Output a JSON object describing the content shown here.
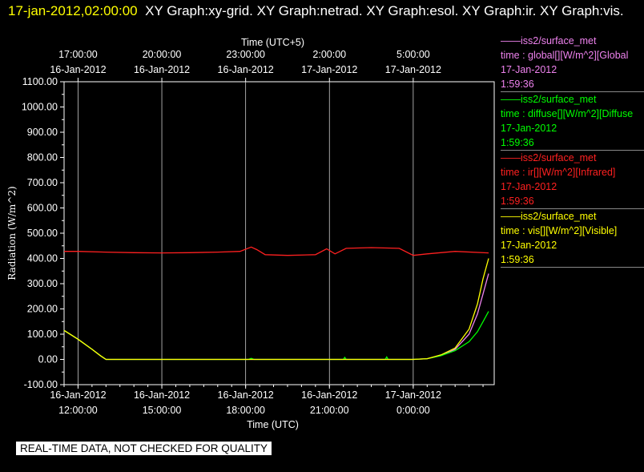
{
  "header": {
    "timestamp": "17-jan-2012,02:00:00",
    "graphs": "XY Graph:xy-grid.  XY Graph:netrad.  XY Graph:esol.  XY Graph:ir.  XY Graph:vis."
  },
  "legend": [
    {
      "source": "iss2/surface_met",
      "field": "time : global[][W/m^2][Global",
      "date": "17-Jan-2012",
      "time": "1:59:36",
      "color": "#ee82ee"
    },
    {
      "source": "iss2/surface_met",
      "field": "time : diffuse[][W/m^2][Diffuse",
      "date": "17-Jan-2012",
      "time": "1:59:36",
      "color": "#00ff00"
    },
    {
      "source": "iss2/surface_met",
      "field": "time : ir[][W/m^2][Infrared]",
      "date": "17-Jan-2012",
      "time": "1:59:36",
      "color": "#ff2020"
    },
    {
      "source": "iss2/surface_met",
      "field": "time : vis[][W/m^2][Visible]",
      "date": "17-Jan-2012",
      "time": "1:59:36",
      "color": "#ffff00"
    }
  ],
  "quality_note": "REAL-TIME DATA, NOT CHECKED FOR QUALITY",
  "chart_data": {
    "type": "line",
    "title": "",
    "xlabel": "Time (UTC)",
    "x2label": "Time (UTC+5)",
    "ylabel": "Radiation (W/m^2)",
    "xlim_hours_utc": [
      11.5,
      26.9
    ],
    "ylim": [
      -100,
      1100
    ],
    "yticks": [
      "-100.00",
      "0.00",
      "100.00",
      "200.00",
      "300.00",
      "400.00",
      "500.00",
      "600.00",
      "700.00",
      "800.00",
      "900.00",
      "1000.00",
      "1100.00"
    ],
    "xticks_bottom": [
      {
        "hour": 12,
        "date": "16-Jan-2012",
        "time": "12:00:00"
      },
      {
        "hour": 15,
        "date": "16-Jan-2012",
        "time": "15:00:00"
      },
      {
        "hour": 18,
        "date": "16-Jan-2012",
        "time": "18:00:00"
      },
      {
        "hour": 21,
        "date": "16-Jan-2012",
        "time": "21:00:00"
      },
      {
        "hour": 24,
        "date": "17-Jan-2012",
        "time": "0:00:00"
      }
    ],
    "xticks_top": [
      {
        "hour": 12,
        "time": "17:00:00",
        "date": "16-Jan-2012"
      },
      {
        "hour": 15,
        "time": "20:00:00",
        "date": "16-Jan-2012"
      },
      {
        "hour": 18,
        "time": "23:00:00",
        "date": "16-Jan-2012"
      },
      {
        "hour": 21,
        "time": "2:00:00",
        "date": "17-Jan-2012"
      },
      {
        "hour": 24,
        "time": "5:00:00",
        "date": "17-Jan-2012"
      }
    ],
    "grid": "vertical",
    "series": [
      {
        "name": "global",
        "color": "#ee82ee",
        "x": [
          11.5,
          12.0,
          12.5,
          12.8,
          13.0,
          24.0,
          24.5,
          25.0,
          25.5,
          26.0,
          26.3,
          26.5,
          26.7
        ],
        "y": [
          115,
          80,
          40,
          15,
          0,
          0,
          3,
          15,
          40,
          100,
          180,
          260,
          340
        ]
      },
      {
        "name": "diffuse",
        "color": "#00ff00",
        "x": [
          11.5,
          12.0,
          12.5,
          12.8,
          13.0,
          18.1,
          18.2,
          18.3,
          21.5,
          21.55,
          21.6,
          23.0,
          23.05,
          23.1,
          24.0,
          24.5,
          25.0,
          25.5,
          26.0,
          26.3,
          26.5,
          26.7
        ],
        "y": [
          115,
          80,
          40,
          15,
          0,
          0,
          4,
          0,
          0,
          8,
          0,
          0,
          10,
          0,
          0,
          3,
          15,
          35,
          70,
          110,
          150,
          190
        ]
      },
      {
        "name": "ir",
        "color": "#ff2020",
        "x": [
          11.5,
          12.0,
          13.0,
          14.0,
          15.0,
          16.0,
          17.0,
          17.8,
          18.2,
          18.4,
          18.7,
          19.5,
          20.5,
          20.9,
          21.2,
          21.6,
          22.5,
          23.5,
          24.0,
          24.5,
          25.5,
          26.7
        ],
        "y": [
          428,
          428,
          425,
          423,
          422,
          423,
          425,
          428,
          445,
          435,
          415,
          412,
          415,
          438,
          418,
          440,
          443,
          440,
          412,
          418,
          428,
          422
        ]
      },
      {
        "name": "vis",
        "color": "#ffff00",
        "x": [
          11.5,
          12.0,
          12.5,
          12.8,
          13.0,
          24.0,
          24.5,
          25.0,
          25.5,
          26.0,
          26.3,
          26.5,
          26.7
        ],
        "y": [
          115,
          80,
          40,
          15,
          0,
          0,
          3,
          18,
          45,
          120,
          220,
          320,
          400
        ]
      }
    ]
  }
}
